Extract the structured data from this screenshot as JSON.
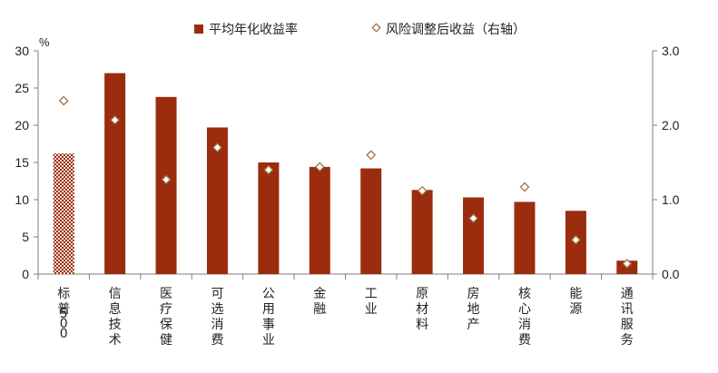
{
  "chart_data": {
    "type": "bar",
    "categories": [
      "标普500",
      "信息技术",
      "医疗保健",
      "可选消费",
      "公用事业",
      "金融",
      "工业",
      "原材料",
      "房地产",
      "核心消费",
      "能源",
      "通讯服务"
    ],
    "series": [
      {
        "name": "平均年化收益率",
        "type": "bar",
        "axis": "left",
        "values": [
          16.2,
          27.0,
          23.8,
          19.7,
          15.0,
          14.4,
          14.2,
          11.3,
          10.3,
          9.7,
          8.5,
          1.8
        ]
      },
      {
        "name": "风险调整后收益（右轴）",
        "type": "scatter",
        "axis": "right",
        "values": [
          2.33,
          2.07,
          1.27,
          1.7,
          1.4,
          1.44,
          1.6,
          1.12,
          0.75,
          1.17,
          0.46,
          0.14
        ]
      }
    ],
    "y_unit": "%",
    "ylim": [
      0,
      30
    ],
    "yticks": [
      "0",
      "5",
      "10",
      "15",
      "20",
      "25",
      "30"
    ],
    "y2lim": [
      0,
      3
    ],
    "y2ticks": [
      "0.0",
      "1.0",
      "2.0",
      "3.0"
    ],
    "grid": false,
    "legend_position": "top",
    "colors": {
      "bar": "#9b2c0e",
      "benchmark_bar_pattern": "#9b2c0e",
      "marker_border": "#a0704a",
      "marker_fill": "#ffffff",
      "axis": "#7f7f7f"
    }
  }
}
